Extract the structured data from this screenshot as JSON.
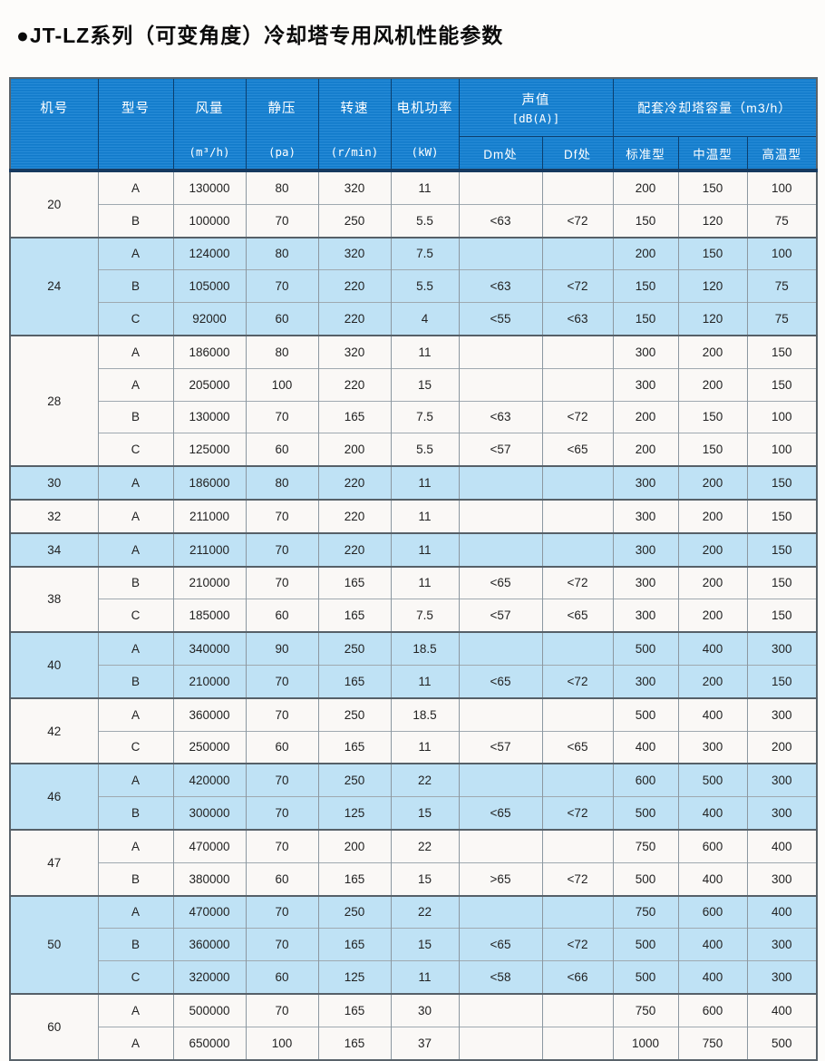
{
  "title": "●JT-LZ系列（可变角度）冷却塔专用风机性能参数",
  "table": {
    "header": {
      "main_cols": [
        {
          "name": "机号",
          "unit": ""
        },
        {
          "name": "型号",
          "unit": ""
        },
        {
          "name": "风量",
          "unit": "(m³/h)"
        },
        {
          "name": "静压",
          "unit": "(pa)"
        },
        {
          "name": "转速",
          "unit": "(r/min)"
        },
        {
          "name": "电机功率",
          "unit": "(kW)"
        }
      ],
      "sound": {
        "name": "声值",
        "unit": "[dB(A)]",
        "subcols": [
          "Dm处",
          "Df处"
        ]
      },
      "capacity": {
        "name": "配套冷却塔容量（m3/h）",
        "subcols": [
          "标准型",
          "中温型",
          "高温型"
        ]
      }
    },
    "groups": [
      {
        "machine_no": "20",
        "tint": "white",
        "rows": [
          {
            "model": "A",
            "airflow": "130000",
            "static_pressure": "80",
            "speed": "320",
            "power": "11",
            "dm": "",
            "df": "",
            "standard": "200",
            "medium": "150",
            "high": "100"
          },
          {
            "model": "B",
            "airflow": "100000",
            "static_pressure": "70",
            "speed": "250",
            "power": "5.5",
            "dm": "<63",
            "df": "<72",
            "standard": "150",
            "medium": "120",
            "high": "75"
          }
        ]
      },
      {
        "machine_no": "24",
        "tint": "blue",
        "rows": [
          {
            "model": "A",
            "airflow": "124000",
            "static_pressure": "80",
            "speed": "320",
            "power": "7.5",
            "dm": "",
            "df": "",
            "standard": "200",
            "medium": "150",
            "high": "100"
          },
          {
            "model": "B",
            "airflow": "105000",
            "static_pressure": "70",
            "speed": "220",
            "power": "5.5",
            "dm": "<63",
            "df": "<72",
            "standard": "150",
            "medium": "120",
            "high": "75"
          },
          {
            "model": "C",
            "airflow": "92000",
            "static_pressure": "60",
            "speed": "220",
            "power": "4",
            "dm": "<55",
            "df": "<63",
            "standard": "150",
            "medium": "120",
            "high": "75"
          }
        ]
      },
      {
        "machine_no": "28",
        "tint": "white",
        "rows": [
          {
            "model": "A",
            "airflow": "186000",
            "static_pressure": "80",
            "speed": "320",
            "power": "11",
            "dm": "",
            "df": "",
            "standard": "300",
            "medium": "200",
            "high": "150"
          },
          {
            "model": "A",
            "airflow": "205000",
            "static_pressure": "100",
            "speed": "220",
            "power": "15",
            "dm": "",
            "df": "",
            "standard": "300",
            "medium": "200",
            "high": "150"
          },
          {
            "model": "B",
            "airflow": "130000",
            "static_pressure": "70",
            "speed": "165",
            "power": "7.5",
            "dm": "<63",
            "df": "<72",
            "standard": "200",
            "medium": "150",
            "high": "100"
          },
          {
            "model": "C",
            "airflow": "125000",
            "static_pressure": "60",
            "speed": "200",
            "power": "5.5",
            "dm": "<57",
            "df": "<65",
            "standard": "200",
            "medium": "150",
            "high": "100"
          }
        ]
      },
      {
        "machine_no": "30",
        "tint": "blue",
        "rows": [
          {
            "model": "A",
            "airflow": "186000",
            "static_pressure": "80",
            "speed": "220",
            "power": "11",
            "dm": "",
            "df": "",
            "standard": "300",
            "medium": "200",
            "high": "150"
          }
        ]
      },
      {
        "machine_no": "32",
        "tint": "white",
        "rows": [
          {
            "model": "A",
            "airflow": "211000",
            "static_pressure": "70",
            "speed": "220",
            "power": "11",
            "dm": "",
            "df": "",
            "standard": "300",
            "medium": "200",
            "high": "150"
          }
        ]
      },
      {
        "machine_no": "34",
        "tint": "blue",
        "rows": [
          {
            "model": "A",
            "airflow": "211000",
            "static_pressure": "70",
            "speed": "220",
            "power": "11",
            "dm": "",
            "df": "",
            "standard": "300",
            "medium": "200",
            "high": "150"
          }
        ]
      },
      {
        "machine_no": "38",
        "tint": "white",
        "rows": [
          {
            "model": "B",
            "airflow": "210000",
            "static_pressure": "70",
            "speed": "165",
            "power": "11",
            "dm": "<65",
            "df": "<72",
            "standard": "300",
            "medium": "200",
            "high": "150"
          },
          {
            "model": "C",
            "airflow": "185000",
            "static_pressure": "60",
            "speed": "165",
            "power": "7.5",
            "dm": "<57",
            "df": "<65",
            "standard": "300",
            "medium": "200",
            "high": "150"
          }
        ]
      },
      {
        "machine_no": "40",
        "tint": "blue",
        "rows": [
          {
            "model": "A",
            "airflow": "340000",
            "static_pressure": "90",
            "speed": "250",
            "power": "18.5",
            "dm": "",
            "df": "",
            "standard": "500",
            "medium": "400",
            "high": "300"
          },
          {
            "model": "B",
            "airflow": "210000",
            "static_pressure": "70",
            "speed": "165",
            "power": "11",
            "dm": "<65",
            "df": "<72",
            "standard": "300",
            "medium": "200",
            "high": "150"
          }
        ]
      },
      {
        "machine_no": "42",
        "tint": "white",
        "rows": [
          {
            "model": "A",
            "airflow": "360000",
            "static_pressure": "70",
            "speed": "250",
            "power": "18.5",
            "dm": "",
            "df": "",
            "standard": "500",
            "medium": "400",
            "high": "300"
          },
          {
            "model": "C",
            "airflow": "250000",
            "static_pressure": "60",
            "speed": "165",
            "power": "11",
            "dm": "<57",
            "df": "<65",
            "standard": "400",
            "medium": "300",
            "high": "200"
          }
        ]
      },
      {
        "machine_no": "46",
        "tint": "blue",
        "rows": [
          {
            "model": "A",
            "airflow": "420000",
            "static_pressure": "70",
            "speed": "250",
            "power": "22",
            "dm": "",
            "df": "",
            "standard": "600",
            "medium": "500",
            "high": "300"
          },
          {
            "model": "B",
            "airflow": "300000",
            "static_pressure": "70",
            "speed": "125",
            "power": "15",
            "dm": "<65",
            "df": "<72",
            "standard": "500",
            "medium": "400",
            "high": "300"
          }
        ]
      },
      {
        "machine_no": "47",
        "tint": "white",
        "rows": [
          {
            "model": "A",
            "airflow": "470000",
            "static_pressure": "70",
            "speed": "200",
            "power": "22",
            "dm": "",
            "df": "",
            "standard": "750",
            "medium": "600",
            "high": "400"
          },
          {
            "model": "B",
            "airflow": "380000",
            "static_pressure": "60",
            "speed": "165",
            "power": "15",
            "dm": ">65",
            "df": "<72",
            "standard": "500",
            "medium": "400",
            "high": "300"
          }
        ]
      },
      {
        "machine_no": "50",
        "tint": "blue",
        "rows": [
          {
            "model": "A",
            "airflow": "470000",
            "static_pressure": "70",
            "speed": "250",
            "power": "22",
            "dm": "",
            "df": "",
            "standard": "750",
            "medium": "600",
            "high": "400"
          },
          {
            "model": "B",
            "airflow": "360000",
            "static_pressure": "70",
            "speed": "165",
            "power": "15",
            "dm": "<65",
            "df": "<72",
            "standard": "500",
            "medium": "400",
            "high": "300"
          },
          {
            "model": "C",
            "airflow": "320000",
            "static_pressure": "60",
            "speed": "125",
            "power": "11",
            "dm": "<58",
            "df": "<66",
            "standard": "500",
            "medium": "400",
            "high": "300"
          }
        ]
      },
      {
        "machine_no": "60",
        "tint": "white",
        "rows": [
          {
            "model": "A",
            "airflow": "500000",
            "static_pressure": "70",
            "speed": "165",
            "power": "30",
            "dm": "",
            "df": "",
            "standard": "750",
            "medium": "600",
            "high": "400"
          },
          {
            "model": "A",
            "airflow": "650000",
            "static_pressure": "100",
            "speed": "165",
            "power": "37",
            "dm": "",
            "df": "",
            "standard": "1000",
            "medium": "750",
            "high": "500"
          }
        ]
      }
    ]
  }
}
